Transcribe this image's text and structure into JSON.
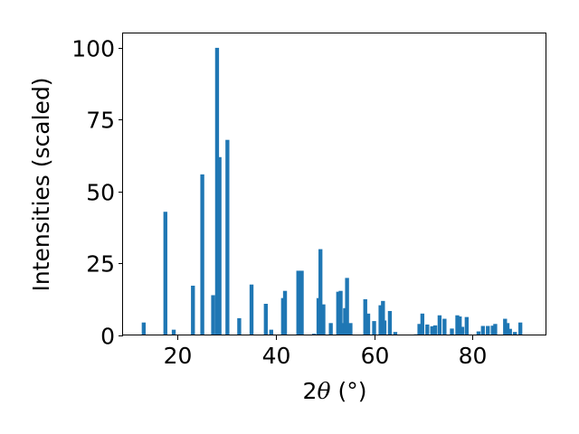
{
  "chart_data": {
    "type": "bar",
    "xlabel": {
      "prefix": "2",
      "symbol": "θ",
      "suffix": " (°)"
    },
    "ylabel": "Intensities (scaled)",
    "xlim": [
      9,
      95
    ],
    "ylim": [
      0,
      105
    ],
    "xticks": [
      20,
      40,
      60,
      80
    ],
    "yticks": [
      0,
      25,
      50,
      75,
      100
    ],
    "bar_color": "#1f77b4",
    "bar_width": 0.8,
    "grid": false,
    "series": [
      {
        "x": [
          13.2,
          17.6,
          19.3,
          23.2,
          25.1,
          27.3,
          28.1,
          28.6,
          30.2,
          32.6,
          35.1,
          38.0,
          39.1,
          41.5,
          41.9,
          44.6,
          45.3,
          47.8,
          48.7,
          49.1,
          49.7,
          51.2,
          52.7,
          53.2,
          53.8,
          54.1,
          54.5,
          55.2,
          56.3,
          58.2,
          58.8,
          60.0,
          61.3,
          61.8,
          62.1,
          63.2,
          64.3,
          68.5,
          69.2,
          69.8,
          70.8,
          71.8,
          72.4,
          73.3,
          74.3,
          75.8,
          76.9,
          77.4,
          77.9,
          78.8,
          81.2,
          82.1,
          83.1,
          84.1,
          84.6,
          86.6,
          87.1,
          87.6,
          88.6,
          89.7
        ],
        "y": [
          4.5,
          43,
          2,
          17.3,
          56,
          14,
          100,
          62,
          68,
          6,
          17.7,
          11,
          2,
          13,
          15.5,
          22.5,
          22.5,
          0.6,
          13,
          30,
          10.8,
          4.3,
          15.2,
          15.5,
          4.3,
          9.5,
          20,
          4.3,
          0.3,
          12.6,
          7.6,
          5,
          10.5,
          12,
          5.2,
          8.5,
          1.2,
          0.4,
          4,
          7.6,
          3.8,
          3.2,
          3.5,
          7,
          5.8,
          2.4,
          7,
          6.6,
          3,
          6.4,
          1.4,
          3.3,
          3.3,
          3.4,
          4,
          5.8,
          4.3,
          2.3,
          1.2,
          4.5
        ]
      }
    ]
  }
}
